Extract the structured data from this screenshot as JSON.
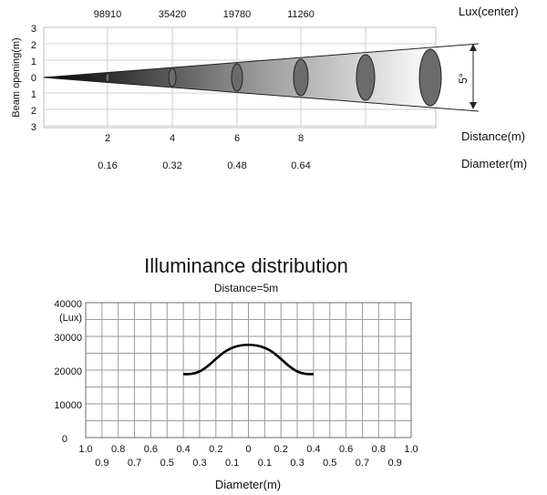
{
  "beam_chart": {
    "ylabel": "Beam opening(m)",
    "y_ticks": [
      "3",
      "2",
      "1",
      "0",
      "1",
      "2",
      "3"
    ],
    "lux_label": "Lux(center)",
    "lux_values": [
      "98910",
      "35420",
      "19780",
      "11260"
    ],
    "distance_label": "Distance(m)",
    "distance_ticks": [
      "2",
      "4",
      "6",
      "8"
    ],
    "diameter_label": "Diameter(m)",
    "diameter_values": [
      "0.16",
      "0.32",
      "0.48",
      "0.64"
    ],
    "angle_label": "5°"
  },
  "illuminance_chart": {
    "title": "Illuminance distribution",
    "subtitle": "Distance=5m",
    "unit_label": "(Lux)",
    "y_ticks": [
      "40000",
      "30000",
      "20000",
      "10000",
      "0"
    ],
    "x_ticks_top": [
      "1.0",
      "0.8",
      "0.6",
      "0.4",
      "0.2",
      "0",
      "0.2",
      "0.4",
      "0.6",
      "0.8",
      "1.0"
    ],
    "x_ticks_bottom": [
      "0.9",
      "0.7",
      "0.5",
      "0.3",
      "0.1",
      "0.1",
      "0.3",
      "0.5",
      "0.7",
      "0.9"
    ],
    "xlabel": "Diameter(m)"
  },
  "chart_data": [
    {
      "type": "line",
      "ylabel": "Beam opening(m)",
      "xlabel": "Distance(m)",
      "beam_angle_deg": 5,
      "x": [
        2,
        4,
        6,
        8
      ],
      "lux_center": [
        98910,
        35420,
        19780,
        11260
      ],
      "diameter_m": [
        0.16,
        0.32,
        0.48,
        0.64
      ],
      "ylim": [
        -3,
        3
      ]
    },
    {
      "type": "line",
      "title": "Illuminance distribution",
      "subtitle": "Distance=5m",
      "xlabel": "Diameter(m)",
      "ylabel": "(Lux)",
      "x": [
        -0.4,
        -0.35,
        -0.3,
        -0.25,
        -0.2,
        -0.15,
        -0.1,
        -0.05,
        0,
        0.05,
        0.1,
        0.15,
        0.2,
        0.25,
        0.3,
        0.35,
        0.4
      ],
      "series": [
        {
          "values": [
            18800,
            18900,
            19600,
            21200,
            23300,
            25300,
            26600,
            27300,
            27500,
            27300,
            26600,
            25300,
            23300,
            21200,
            19600,
            18900,
            18800
          ]
        }
      ],
      "xlim": [
        -1.0,
        1.0
      ],
      "ylim": [
        0,
        40000
      ],
      "grid": true
    }
  ]
}
